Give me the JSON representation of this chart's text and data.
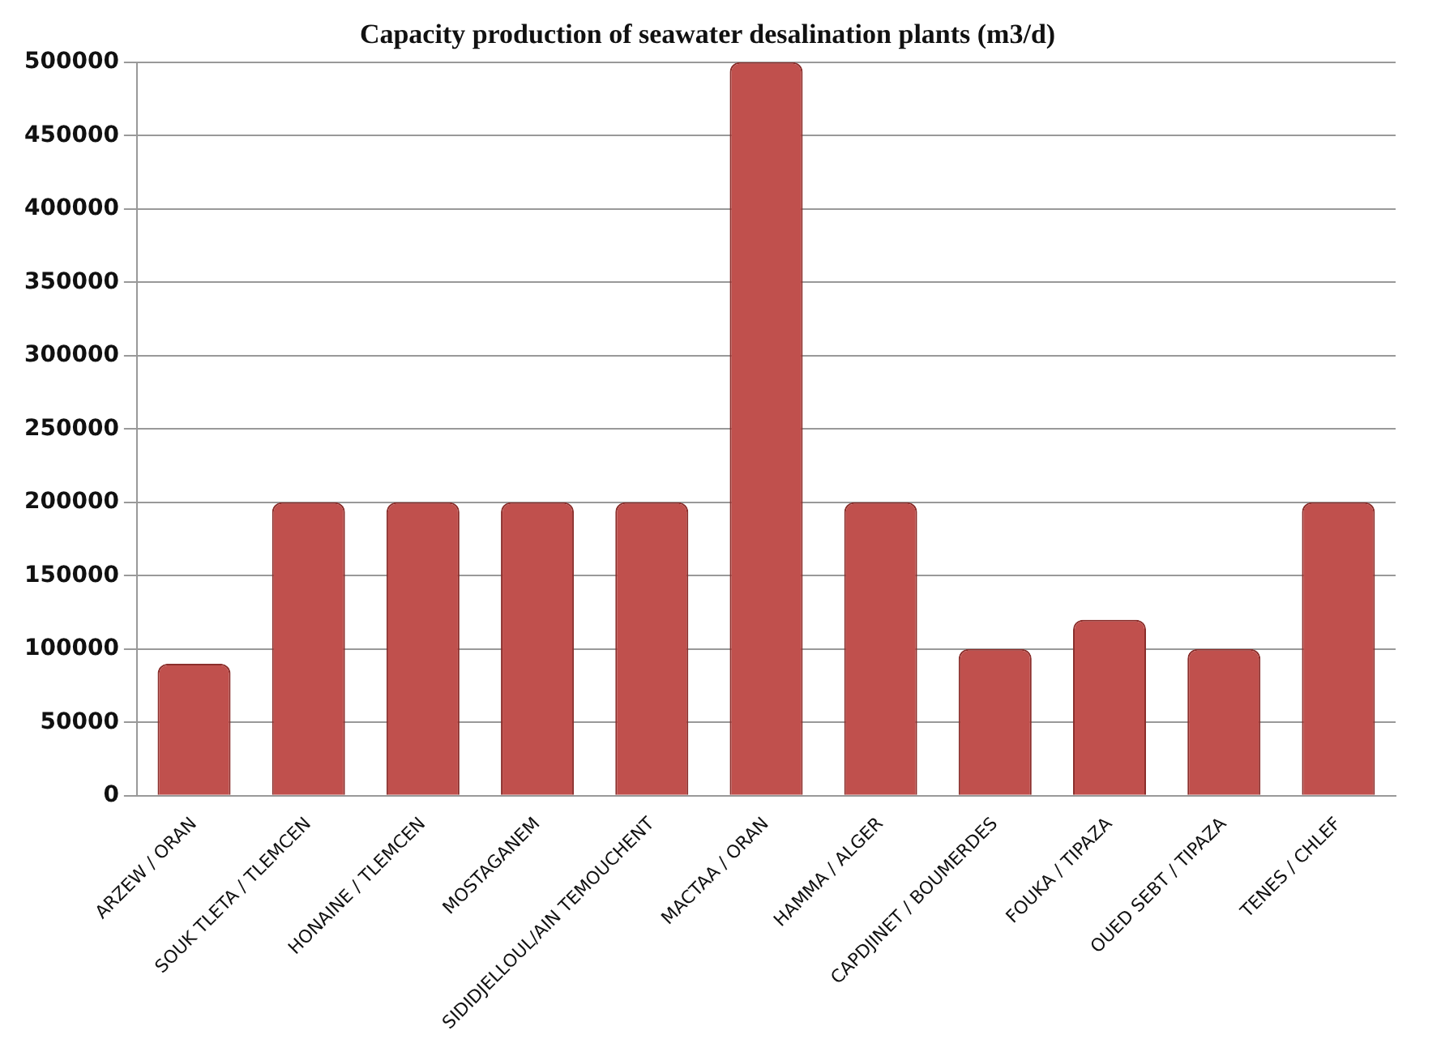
{
  "chart_data": {
    "type": "bar",
    "title": "Capacity production of seawater desalination plants (m3/d)",
    "categories": [
      "ARZEW / ORAN",
      "SOUK TLETA / TLEMCEN",
      "HONAINE / TLEMCEN",
      "MOSTAGANEM",
      "SIDIDJELLOUL/AIN TEMOUCHENT",
      "MACTAA / ORAN",
      "HAMMA / ALGER",
      "CAPDJINET / BOUMERDES",
      "FOUKA / TIPAZA",
      "OUED SEBT / TIPAZA",
      "TENES / CHLEF"
    ],
    "values": [
      90000,
      200000,
      200000,
      200000,
      200000,
      500000,
      200000,
      100000,
      120000,
      100000,
      200000
    ],
    "color": "#c0504d",
    "ylim": [
      0,
      500000
    ],
    "yticks": [
      0,
      50000,
      100000,
      150000,
      200000,
      250000,
      300000,
      350000,
      400000,
      450000,
      500000
    ],
    "grid": "y",
    "legend": false
  }
}
